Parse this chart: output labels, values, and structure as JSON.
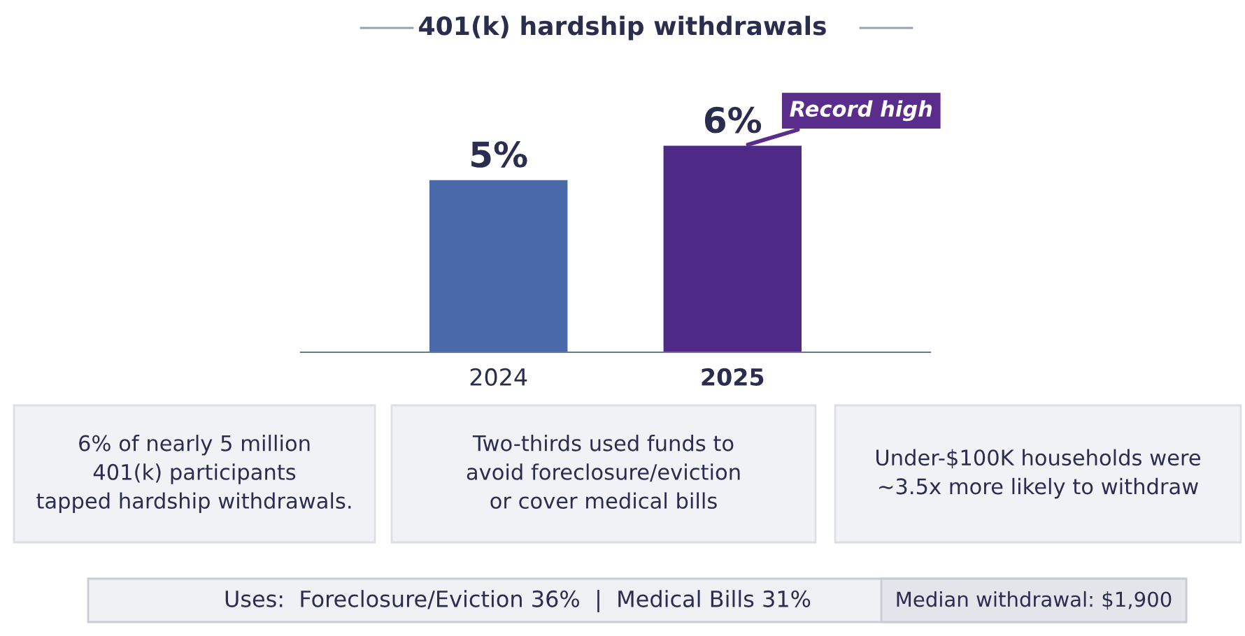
{
  "chart_data": {
    "type": "bar",
    "title": "401(k) hardship withdrawals",
    "categories": [
      "2024",
      "2025"
    ],
    "values": [
      5,
      6
    ],
    "colors": [
      "#4a69a8",
      "#4e2a86"
    ],
    "value_labels": [
      "5%",
      "6%"
    ],
    "annotations": [
      {
        "text": "Record high",
        "x": "2025",
        "y": 6
      },
      "6% of nearly 5 million\n401(k) participants\ntapped hardship withdrawals.",
      "Two-thirds used funds to\navoid foreclosure/eviction\nor cover medical bills",
      "Under-$100K households were\n~3.5x more likely to withdraw",
      "Uses:  Foreclosure/Eviction 36%  |  Medical Bills 31%",
      "Median withdrawal: $1,900"
    ]
  }
}
